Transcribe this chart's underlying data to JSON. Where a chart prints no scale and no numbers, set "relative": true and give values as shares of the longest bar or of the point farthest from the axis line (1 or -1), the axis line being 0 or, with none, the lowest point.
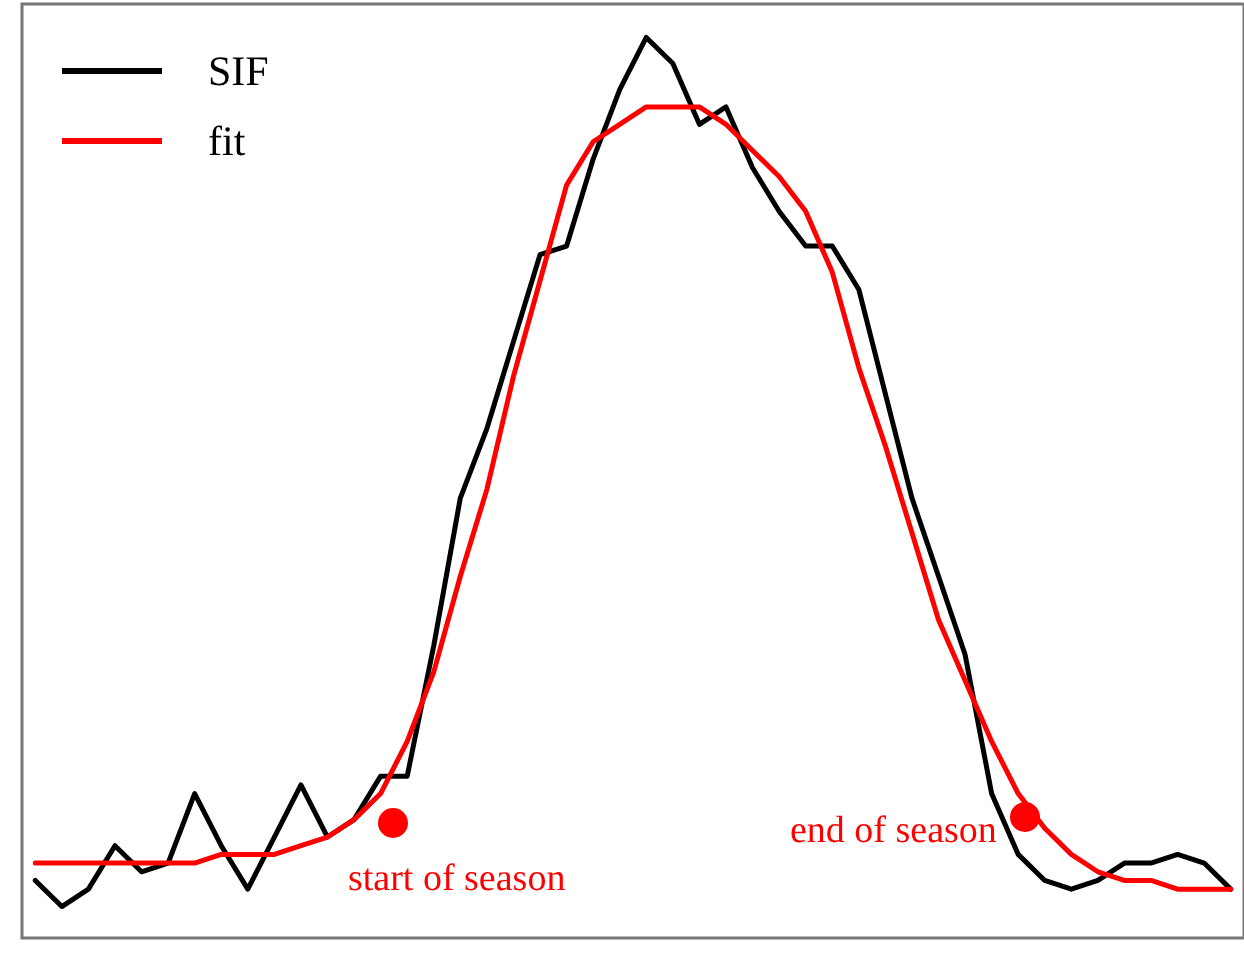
{
  "chart_data": {
    "type": "line",
    "relative": true,
    "legend": "top left",
    "marker": "none",
    "line_style": "solid",
    "grid": false,
    "categories": [
      null,
      null,
      null,
      null,
      null,
      null,
      null,
      null,
      null,
      null,
      null,
      null,
      null,
      null,
      null,
      null,
      null,
      null,
      null,
      null,
      null,
      null,
      null,
      null,
      null,
      null,
      null,
      null,
      null,
      null,
      null,
      null,
      null,
      null,
      null,
      null,
      null,
      null,
      null,
      null,
      null,
      null,
      null,
      null,
      null,
      null
    ],
    "series": [
      {
        "name": "SIF",
        "color": "#000000",
        "values": [
          0.03,
          0,
          0.02,
          0.07,
          0.04,
          0.05,
          0.13,
          0.07,
          0.02,
          0.08,
          0.14,
          0.08,
          0.1,
          0.15,
          0.15,
          0.3,
          0.47,
          0.55,
          0.65,
          0.75,
          0.76,
          0.86,
          0.94,
          1,
          0.97,
          0.9,
          0.92,
          0.85,
          0.8,
          0.76,
          0.76,
          0.71,
          0.59,
          0.47,
          0.38,
          0.29,
          0.13,
          0.06,
          0.03,
          0.02,
          0.03,
          0.05,
          0.05,
          0.06,
          0.05,
          0.02
        ]
      },
      {
        "name": "fit",
        "color": "#ff0000",
        "values": [
          0.05,
          0.05,
          0.05,
          0.05,
          0.05,
          0.05,
          0.05,
          0.06,
          0.06,
          0.06,
          0.07,
          0.08,
          0.1,
          0.13,
          0.19,
          0.27,
          0.38,
          0.48,
          0.61,
          0.72,
          0.83,
          0.88,
          0.9,
          0.92,
          0.92,
          0.92,
          0.9,
          0.87,
          0.84,
          0.8,
          0.73,
          0.62,
          0.53,
          0.43,
          0.33,
          0.26,
          0.19,
          0.13,
          0.09,
          0.06,
          0.04,
          0.03,
          0.03,
          0.02,
          0.02,
          0.02
        ]
      }
    ],
    "annotations": [
      "start of season",
      "end of season"
    ]
  }
}
